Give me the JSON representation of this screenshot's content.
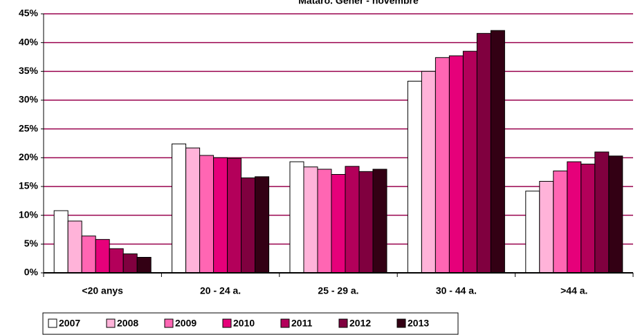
{
  "chart_data": {
    "type": "bar",
    "title": "Mataró. Gener - novembre",
    "categories": [
      "<20 anys",
      "20 - 24 a.",
      "25 - 29 a.",
      "30 - 44 a.",
      ">44 a."
    ],
    "series": [
      {
        "name": "2007",
        "color": "#ffffff",
        "values": [
          10.8,
          22.4,
          19.3,
          33.3,
          14.2
        ]
      },
      {
        "name": "2008",
        "color": "#ffb3d9",
        "values": [
          9.0,
          21.7,
          18.4,
          35.0,
          15.9
        ]
      },
      {
        "name": "2009",
        "color": "#ff66b3",
        "values": [
          6.4,
          20.4,
          18.0,
          37.4,
          17.7
        ]
      },
      {
        "name": "2010",
        "color": "#e6007a",
        "values": [
          5.8,
          20.0,
          17.1,
          37.7,
          19.3
        ]
      },
      {
        "name": "2011",
        "color": "#b3005a",
        "values": [
          4.2,
          19.9,
          18.5,
          38.5,
          18.9
        ]
      },
      {
        "name": "2012",
        "color": "#80003f",
        "values": [
          3.3,
          16.5,
          17.6,
          41.6,
          21.0
        ]
      },
      {
        "name": "2013",
        "color": "#330014",
        "values": [
          2.7,
          16.7,
          18.0,
          42.1,
          20.3
        ]
      }
    ],
    "ylim": [
      0,
      45
    ],
    "yticks": [
      {
        "value": 0,
        "label": "0%"
      },
      {
        "value": 5,
        "label": "5%"
      },
      {
        "value": 10,
        "label": "10%"
      },
      {
        "value": 15,
        "label": "15%"
      },
      {
        "value": 20,
        "label": "20%"
      },
      {
        "value": 25,
        "label": "25%"
      },
      {
        "value": 30,
        "label": "30%"
      },
      {
        "value": 35,
        "label": "35%"
      },
      {
        "value": 40,
        "label": "40%"
      },
      {
        "value": 45,
        "label": "45%"
      }
    ],
    "grid": true,
    "grid_color": "#99004d",
    "legend": "bottom-left"
  }
}
